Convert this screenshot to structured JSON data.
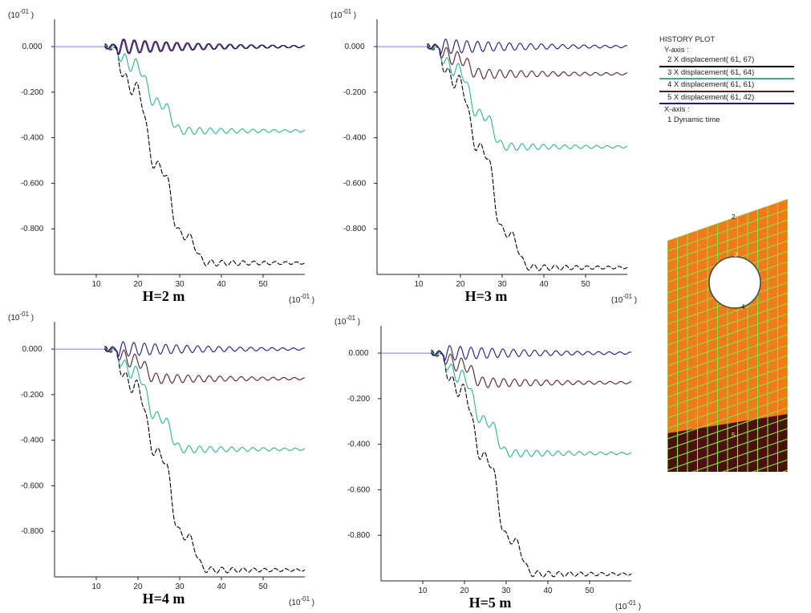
{
  "chart_data": [
    {
      "type": "line",
      "title": "H=2 m",
      "y_scale_label": "(10",
      "y_scale_exp": "-01",
      "x_scale_label": "(10",
      "x_scale_exp": "-01",
      "y_ticks": [
        "0.000",
        "-0.200",
        "-0.400",
        "-0.600",
        "-0.800"
      ],
      "x_ticks": [
        "10",
        "20",
        "30",
        "40",
        "50"
      ],
      "xlim": [
        0,
        60
      ],
      "ylim": [
        -1.0,
        0.12
      ],
      "series": [
        {
          "name": "2 X displacement( 61, 67)",
          "color": "#000000",
          "final": -0.95,
          "steps": [
            -0.18,
            -0.53,
            -0.83,
            -0.95
          ]
        },
        {
          "name": "3 X displacement( 61, 64)",
          "color": "#2bb68e",
          "final": -0.37,
          "steps": [
            -0.08,
            -0.25,
            -0.37
          ]
        },
        {
          "name": "4 X displacement( 61, 61)",
          "color": "#5a1f1f",
          "final": 0.0,
          "steps": [
            0.0
          ]
        },
        {
          "name": "5 X displacement( 61, 42)",
          "color": "#1a1a8c",
          "final": 0.0,
          "steps": [
            0.0
          ]
        }
      ]
    },
    {
      "type": "line",
      "title": "H=3 m",
      "y_scale_label": "(10",
      "y_scale_exp": "-01",
      "x_scale_label": "(10",
      "x_scale_exp": "-01",
      "y_ticks": [
        "0.000",
        "-0.200",
        "-0.400",
        "-0.600",
        "-0.800"
      ],
      "x_ticks": [
        "10",
        "20",
        "30",
        "40",
        "50"
      ],
      "xlim": [
        0,
        60
      ],
      "ylim": [
        -1.0,
        0.12
      ],
      "series": [
        {
          "name": "2 X displacement( 61, 67)",
          "color": "#000000",
          "final": -0.97,
          "steps": [
            -0.15,
            -0.45,
            -0.82,
            -0.97
          ]
        },
        {
          "name": "3 X displacement( 61, 64)",
          "color": "#2bb68e",
          "final": -0.44,
          "steps": [
            -0.1,
            -0.3,
            -0.44
          ]
        },
        {
          "name": "4 X displacement( 61, 61)",
          "color": "#5a1f1f",
          "final": -0.12,
          "steps": [
            -0.05,
            -0.12
          ]
        },
        {
          "name": "5 X displacement( 61, 42)",
          "color": "#1a1a8c",
          "final": 0.0,
          "steps": [
            0.0
          ]
        }
      ]
    },
    {
      "type": "line",
      "title": "H=4 m",
      "y_scale_label": "(10",
      "y_scale_exp": "-01",
      "x_scale_label": "(10",
      "x_scale_exp": "-01",
      "y_ticks": [
        "0.000",
        "-0.200",
        "-0.400",
        "-0.600",
        "-0.800"
      ],
      "x_ticks": [
        "10",
        "20",
        "30",
        "40",
        "50"
      ],
      "xlim": [
        0,
        60
      ],
      "ylim": [
        -1.0,
        0.12
      ],
      "series": [
        {
          "name": "2 X displacement( 61, 67)",
          "color": "#000000",
          "final": -0.97,
          "steps": [
            -0.16,
            -0.46,
            -0.82,
            -0.97
          ]
        },
        {
          "name": "3 X displacement( 61, 64)",
          "color": "#2bb68e",
          "final": -0.44,
          "steps": [
            -0.1,
            -0.3,
            -0.44
          ]
        },
        {
          "name": "4 X displacement( 61, 61)",
          "color": "#5a1f1f",
          "final": -0.13,
          "steps": [
            -0.05,
            -0.13
          ]
        },
        {
          "name": "5 X displacement( 61, 42)",
          "color": "#1a1a8c",
          "final": 0.0,
          "steps": [
            0.0
          ]
        }
      ]
    },
    {
      "type": "line",
      "title": "H=5 m",
      "y_scale_label": "(10",
      "y_scale_exp": "-01",
      "x_scale_label": "(10",
      "x_scale_exp": "-01",
      "y_ticks": [
        "0.000",
        "-0.200",
        "-0.400",
        "-0.600",
        "-0.800"
      ],
      "x_ticks": [
        "10",
        "20",
        "30",
        "40",
        "50"
      ],
      "xlim": [
        0,
        60
      ],
      "ylim": [
        -1.0,
        0.12
      ],
      "series": [
        {
          "name": "2 X displacement( 61, 67)",
          "color": "#000000",
          "final": -0.97,
          "steps": [
            -0.16,
            -0.46,
            -0.82,
            -0.97
          ]
        },
        {
          "name": "3 X displacement( 61, 64)",
          "color": "#2bb68e",
          "final": -0.44,
          "steps": [
            -0.1,
            -0.3,
            -0.44
          ]
        },
        {
          "name": "4 X displacement( 61, 61)",
          "color": "#5a1f1f",
          "final": -0.13,
          "steps": [
            -0.05,
            -0.13
          ]
        },
        {
          "name": "5 X displacement( 61, 42)",
          "color": "#1a1a8c",
          "final": 0.0,
          "steps": [
            0.0
          ]
        }
      ]
    }
  ],
  "legend": {
    "title": "HISTORY PLOT",
    "y_axis": "Y-axis :",
    "items": [
      {
        "label": "2 X displacement( 61, 67)",
        "color": "#000000"
      },
      {
        "label": "3 X displacement( 61, 64)",
        "color": "#2bb68e"
      },
      {
        "label": "4 X displacement( 61, 61)",
        "color": "#5a1f1f"
      },
      {
        "label": "5 X displacement( 61, 42)",
        "color": "#1a1a8c"
      }
    ],
    "x_axis": "X-axis :",
    "x_item": "1 Dynamic time"
  },
  "mesh": {
    "labels": [
      "2",
      "3",
      "4",
      "5"
    ],
    "colors": {
      "soil": "#f07a1e",
      "grid": "#8fe03a",
      "bottom": "#4a0f0f"
    }
  }
}
